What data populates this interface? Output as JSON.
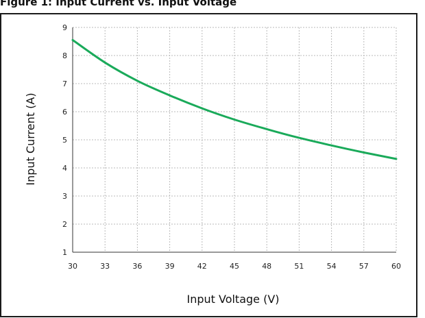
{
  "header": {
    "title": "Figure 1: Input Current vs. Input Voltage"
  },
  "chart_data": {
    "type": "line",
    "xlabel": "Input Voltage (V)",
    "ylabel": "Input Current (A)",
    "xlim": [
      30,
      60
    ],
    "ylim": [
      1,
      9
    ],
    "xticks": [
      30,
      33,
      36,
      39,
      42,
      45,
      48,
      51,
      54,
      57,
      60
    ],
    "yticks": [
      1,
      2,
      3,
      4,
      5,
      6,
      7,
      8,
      9
    ],
    "grid": true,
    "series": [
      {
        "color": "#1aaa5a",
        "x": [
          30,
          33,
          36,
          39,
          42,
          45,
          48,
          51,
          54,
          57,
          60
        ],
        "y": [
          8.55,
          7.75,
          7.1,
          6.58,
          6.12,
          5.72,
          5.38,
          5.07,
          4.8,
          4.55,
          4.32
        ]
      }
    ]
  }
}
